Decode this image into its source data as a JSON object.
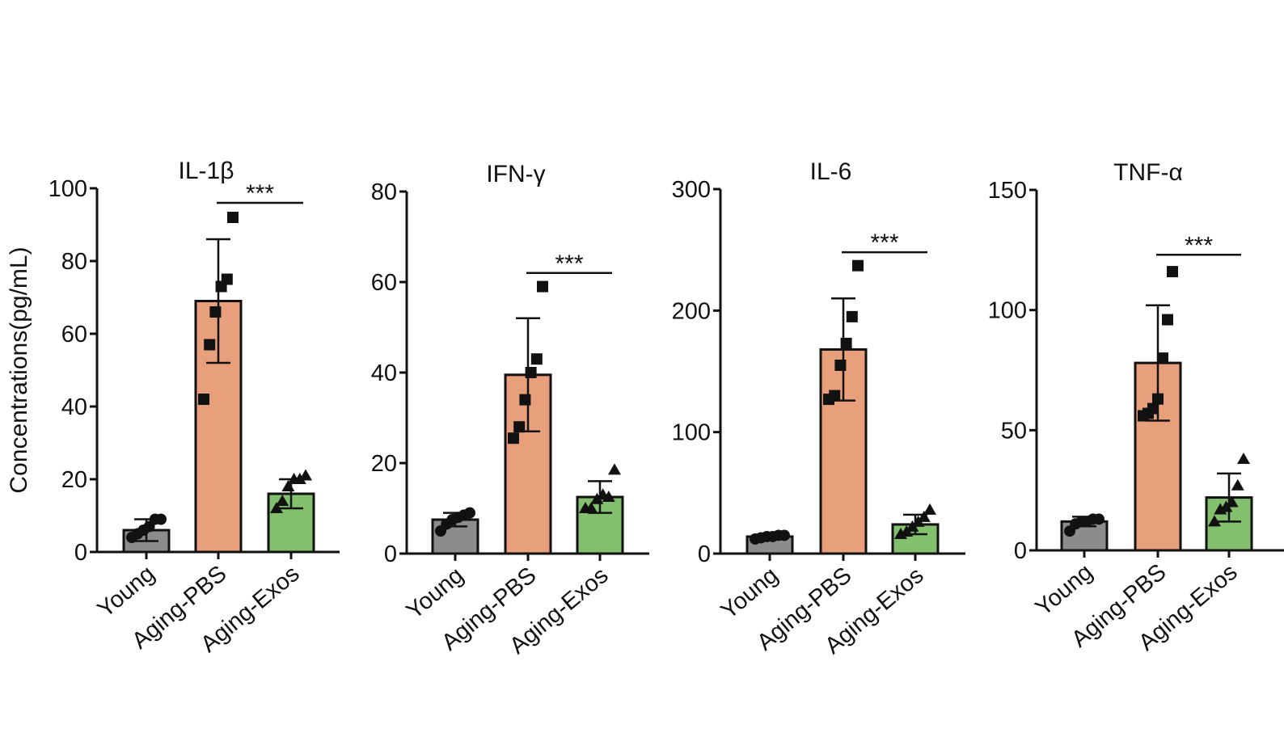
{
  "ylabel": "Concentrations(pg/mL)",
  "chart_data": [
    {
      "type": "bar",
      "title": "IL-1β",
      "ylim": [
        0,
        100
      ],
      "yticks": [
        0,
        20,
        40,
        60,
        80,
        100
      ],
      "categories": [
        "Young",
        "Aging-PBS",
        "Aging-Exos"
      ],
      "colors": [
        "#8c8c8c",
        "#e8a07c",
        "#82c06e"
      ],
      "markers": [
        "circle",
        "square",
        "triangle"
      ],
      "means": [
        6,
        69,
        16
      ],
      "errors": [
        3,
        17,
        4
      ],
      "points": [
        [
          4,
          5,
          6,
          7,
          9,
          9
        ],
        [
          42,
          57,
          66,
          73,
          75,
          92
        ],
        [
          12,
          14,
          18,
          20,
          20,
          21
        ]
      ],
      "significance": {
        "from": 1,
        "to": 2,
        "label": "***",
        "y": 96
      }
    },
    {
      "type": "bar",
      "title": "IFN-γ",
      "ylim": [
        0,
        80
      ],
      "yticks": [
        0,
        20,
        40,
        60,
        80
      ],
      "categories": [
        "Young",
        "Aging-PBS",
        "Aging-Exos"
      ],
      "colors": [
        "#8c8c8c",
        "#e8a07c",
        "#82c06e"
      ],
      "markers": [
        "circle",
        "square",
        "triangle"
      ],
      "means": [
        7.5,
        39.5,
        12.5
      ],
      "errors": [
        1.5,
        12.5,
        3.5
      ],
      "points": [
        [
          5,
          6.5,
          7.5,
          8,
          8.5,
          9
        ],
        [
          25.5,
          28,
          34,
          40,
          43,
          59
        ],
        [
          10,
          10,
          12,
          13,
          12.5,
          18.5
        ]
      ],
      "significance": {
        "from": 1,
        "to": 2,
        "label": "***",
        "y": 62
      }
    },
    {
      "type": "bar",
      "title": "IL-6",
      "ylim": [
        0,
        300
      ],
      "yticks": [
        0,
        100,
        200,
        300
      ],
      "categories": [
        "Young",
        "Aging-PBS",
        "Aging-Exos"
      ],
      "colors": [
        "#8c8c8c",
        "#e8a07c",
        "#82c06e"
      ],
      "markers": [
        "circle",
        "square",
        "triangle"
      ],
      "means": [
        14,
        168,
        24
      ],
      "errors": [
        2,
        42,
        8
      ],
      "points": [
        [
          12,
          13,
          14,
          14,
          15,
          15
        ],
        [
          127,
          130,
          155,
          173,
          195,
          237
        ],
        [
          16,
          18,
          22,
          26,
          30,
          36
        ]
      ],
      "significance": {
        "from": 1,
        "to": 2,
        "label": "***",
        "y": 248
      }
    },
    {
      "type": "bar",
      "title": "TNF-α",
      "ylim": [
        0,
        150
      ],
      "yticks": [
        0,
        50,
        100,
        150
      ],
      "categories": [
        "Young",
        "Aging-PBS",
        "Aging-Exos"
      ],
      "colors": [
        "#8c8c8c",
        "#e8a07c",
        "#82c06e"
      ],
      "markers": [
        "circle",
        "square",
        "triangle"
      ],
      "means": [
        12,
        78,
        22
      ],
      "errors": [
        2,
        24,
        10
      ],
      "points": [
        [
          8,
          11,
          12,
          12,
          13,
          13
        ],
        [
          56,
          57,
          59,
          63,
          80,
          96,
          116
        ],
        [
          12,
          17,
          18,
          20,
          27,
          38
        ]
      ],
      "significance": {
        "from": 1,
        "to": 2,
        "label": "***",
        "y": 123
      }
    }
  ]
}
